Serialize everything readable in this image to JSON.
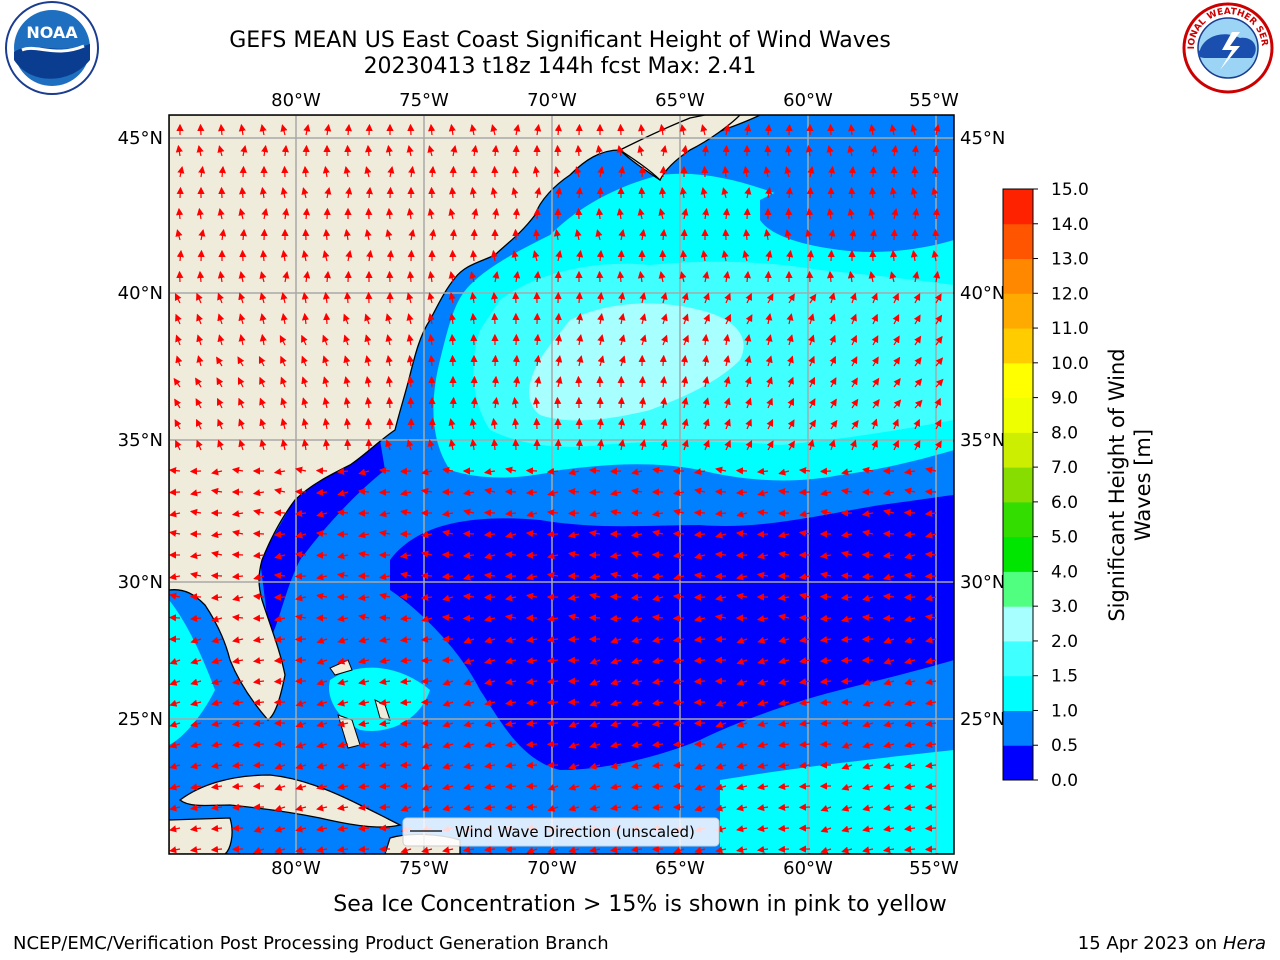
{
  "header": {
    "title_line1": "GEFS MEAN US East Coast Significant Height of Wind Waves",
    "title_line2": "20230413 t18z 144h fcst   Max: 2.41"
  },
  "map": {
    "lon_labels": [
      "80°W",
      "75°W",
      "70°W",
      "65°W",
      "60°W",
      "55°W"
    ],
    "lat_labels": [
      "45°N",
      "40°N",
      "35°N",
      "30°N",
      "25°N"
    ],
    "legend_label": "Wind Wave Direction (unscaled)",
    "arrow_color": "#ff0000",
    "ocean_colors": {
      "lt0_5": "#0000ff",
      "0_5to1": "#0080ff",
      "1to1_5": "#00ffff",
      "1_5to2": "#40ffff",
      "2to3": "#a8ffff",
      "land": "#efecdc"
    }
  },
  "colorbar": {
    "title": "Significant Height of Wind Waves [m]",
    "ticks": [
      "0.0",
      "0.5",
      "1.0",
      "1.5",
      "2.0",
      "3.0",
      "4.0",
      "5.0",
      "6.0",
      "7.0",
      "8.0",
      "9.0",
      "10.0",
      "11.0",
      "12.0",
      "13.0",
      "14.0",
      "15.0"
    ],
    "colors": [
      "#0000ff",
      "#0080ff",
      "#00ffff",
      "#40ffff",
      "#a8ffff",
      "#50ff80",
      "#00e600",
      "#33dd00",
      "#88dd00",
      "#ccee00",
      "#eeff00",
      "#ffff00",
      "#ffcc00",
      "#ffaa00",
      "#ff8800",
      "#ff5500",
      "#ff2200"
    ]
  },
  "notes": {
    "sea_ice": "Sea Ice Concentration > 15% is shown in pink to yellow",
    "left_credit": "NCEP/EMC/Verification Post Processing Product Generation Branch",
    "right_credit_date": "15 Apr 2023 on ",
    "right_credit_host": "Hera"
  },
  "logos": {
    "left_text": "NOAA",
    "right_text": "NATIONAL WEATHER SERVICE"
  }
}
